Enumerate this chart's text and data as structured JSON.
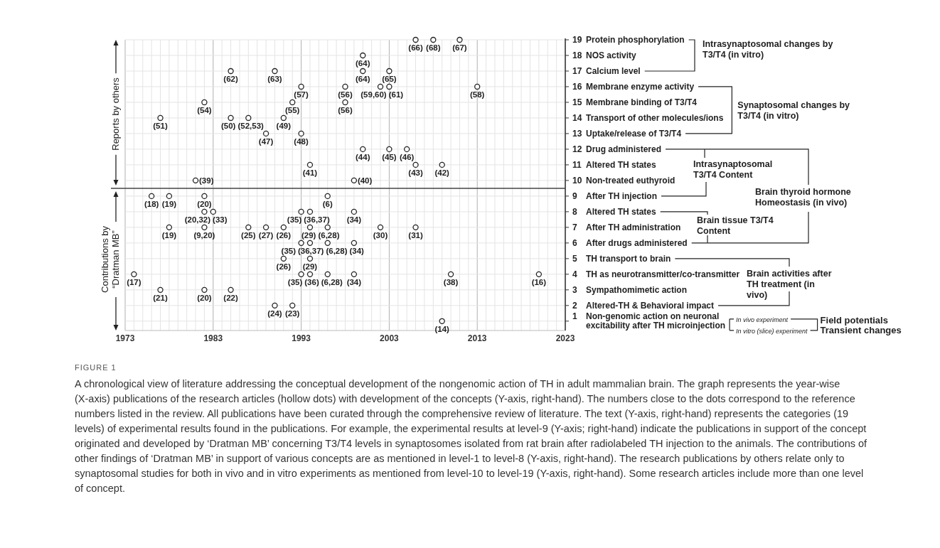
{
  "chart_data": {
    "type": "scatter",
    "x": [
      2006,
      2008,
      2011,
      2000,
      1985,
      1990,
      2000,
      2003,
      1993,
      1998,
      2002,
      2003,
      2013,
      1982,
      1992,
      1998,
      1977,
      1985,
      1987,
      1991,
      1989,
      1993,
      2000,
      2003,
      2005,
      1994,
      2006,
      2009,
      1981,
      1999,
      1976,
      1978,
      1982,
      1996,
      1982,
      1983,
      1993,
      1994,
      1999,
      1978,
      1982,
      1987,
      1989,
      1991,
      1994,
      1996,
      2002,
      2006,
      1993,
      1994,
      1996,
      1999,
      1991,
      1994,
      1974,
      1993,
      1994,
      1996,
      1999,
      2010,
      2020,
      1977,
      1982,
      1985,
      1990,
      1992,
      2009
    ],
    "values": [
      19,
      19,
      19,
      18,
      17,
      17,
      17,
      17,
      16,
      16,
      16,
      16,
      16,
      15,
      15,
      15,
      14,
      14,
      14,
      14,
      13,
      13,
      12,
      12,
      12,
      11,
      11,
      11,
      10,
      10,
      9,
      9,
      9,
      9,
      8,
      8,
      8,
      8,
      8,
      7,
      7,
      7,
      7,
      7,
      7,
      7,
      7,
      7,
      6,
      6,
      6,
      6,
      5,
      5,
      4,
      4,
      4,
      4,
      4,
      4,
      4,
      3,
      3,
      3,
      2,
      2,
      1
    ],
    "color": "#222222",
    "marker": "circle",
    "xlim": [
      1973,
      2023
    ],
    "xticks": [
      1973,
      {
        "value": 1974,
        "label": null
      },
      {
        "value": 1975,
        "label": null
      },
      {
        "value": 1976,
        "label": null
      },
      {
        "value": 1977,
        "label": null
      },
      {
        "value": 1978,
        "label": null
      },
      {
        "value": 1979,
        "label": null
      },
      {
        "value": 1980,
        "label": null
      },
      {
        "value": 1981,
        "label": null
      },
      {
        "value": 1982,
        "label": null
      },
      1983,
      {
        "value": 1984,
        "label": null
      },
      {
        "value": 1985,
        "label": null
      },
      {
        "value": 1986,
        "label": null
      },
      {
        "value": 1987,
        "label": null
      },
      {
        "value": 1988,
        "label": null
      },
      {
        "value": 1989,
        "label": null
      },
      {
        "value": 1990,
        "label": null
      },
      {
        "value": 1991,
        "label": null
      },
      {
        "value": 1992,
        "label": null
      },
      1993,
      {
        "value": 1994,
        "label": null
      },
      {
        "value": 1995,
        "label": null
      },
      {
        "value": 1996,
        "label": null
      },
      {
        "value": 1997,
        "label": null
      },
      {
        "value": 1998,
        "label": null
      },
      {
        "value": 1999,
        "label": null
      },
      {
        "value": 2000,
        "label": null
      },
      {
        "value": 2001,
        "label": null
      },
      {
        "value": 2002,
        "label": null
      },
      2003,
      {
        "value": 2004,
        "label": null
      },
      {
        "value": 2005,
        "label": null
      },
      {
        "value": 2006,
        "label": null
      },
      {
        "value": 2007,
        "label": null
      },
      {
        "value": 2008,
        "label": null
      },
      {
        "value": 2009,
        "label": null
      },
      {
        "value": 2010,
        "label": null
      },
      {
        "value": 2011,
        "label": null
      },
      {
        "value": 2012,
        "label": null
      },
      2013,
      {
        "value": 2014,
        "label": null
      },
      {
        "value": 2015,
        "label": null
      },
      {
        "value": 2016,
        "label": null
      },
      {
        "value": 2017,
        "label": null
      },
      {
        "value": 2018,
        "label": null
      },
      {
        "value": 2019,
        "label": null
      },
      {
        "value": 2020,
        "label": null
      },
      {
        "value": 2021,
        "label": null
      },
      {
        "value": 2022,
        "label": null
      },
      2023
    ],
    "ylim": [
      0.4,
      19
    ],
    "yticks": [
      {
        "value": 1,
        "label": "1 Non-genomic action on neuronal excitability after TH microinjection"
      },
      {
        "value": 2,
        "label": "2 Altered-TH & Behavioral impact"
      },
      {
        "value": 3,
        "label": "3 Sympathomimetic action"
      },
      {
        "value": 4,
        "label": "4 TH as neurotransmitter/co-transmitter"
      },
      {
        "value": 5,
        "label": "5 TH transport to brain"
      },
      {
        "value": 6,
        "label": "6 After drugs administered"
      },
      {
        "value": 7,
        "label": "7 After TH administration"
      },
      {
        "value": 8,
        "label": "8 Altered TH states"
      },
      {
        "value": 9,
        "label": "9 After TH injection"
      },
      {
        "value": 10,
        "label": "10 Non-treated euthyroid"
      },
      {
        "value": 11,
        "label": "11 Altered TH states"
      },
      {
        "value": 12,
        "label": "12 Drug administered"
      },
      {
        "value": 13,
        "label": "13 Uptake/release of T3/T4"
      },
      {
        "value": 14,
        "label": "14 Transport of other molecules/ions"
      },
      {
        "value": 15,
        "label": "15 Membrane binding of T3/T4"
      },
      {
        "value": 16,
        "label": "16 Membrane enzyme activity"
      },
      {
        "value": 17,
        "label": "17 Calcium level"
      },
      {
        "value": 18,
        "label": "18 NOS activity"
      },
      {
        "value": 19,
        "label": "19 Protein phosphorylation"
      }
    ],
    "grid": true,
    "ref_lines": [
      {
        "axis": "y",
        "value": 9.5,
        "color": "#444444"
      }
    ],
    "annotations": [
      "Intrasynaptosomal changes by T3/T4 (in vitro)",
      "Synaptosomal changes by T3/T4 (in vitro)",
      "Intrasynaptosomal T3/T4 Content",
      "Brain tissue T3/T4 Content",
      "Brain thyroid hormone Homeostasis (in vivo)",
      "Brain activities after TH treatment (in vivo)",
      "In vivo experiment",
      "In vitro (slice) experiment",
      "Field potentials",
      "Transient changes",
      "Reports by others",
      "Contributions by “Dratman MB”",
      "FIGURE 1",
      "A chronological view of literature addressing the conceptual development of the nongenomic action of TH in adult mammalian brain. The graph represents the year-wise (X-axis) publications of the research articles (hollow dots) with development of the concepts (Y-axis, right-hand). The numbers close to the dots correspond to the reference numbers listed in the review. All publications have been curated through the comprehensive review of literature. The text (Y-axis, right-hand) represents the categories (19 levels) of experimental results found in the publications. For example, the experimental results at level-9 (Y-axis; right-hand) indicate the publications in support of the concept originated and developed by ‘Dratman MB’ concerning T3/T4 levels in synaptosomes isolated from rat brain after radiolabeled TH injection to the animals. The contributions of other findings of ‘Dratman MB’ in support of various concepts are as mentioned in level-1 to level-8 (Y-axis, right-hand). The research publications by others relate only to synaptosomal studies for both in vivo and in vitro experiments as mentioned from level-10 to level-19 (Y-axis, right-hand). Some research articles include more than one level of concept.",
      {
        "text": "(66)",
        "x": 2006,
        "y": 19
      },
      {
        "text": "(68)",
        "x": 2008,
        "y": 19
      },
      {
        "text": "(67)",
        "x": 2011,
        "y": 19
      },
      {
        "text": "(64)",
        "x": 2000,
        "y": 18
      },
      {
        "text": "(62)",
        "x": 1985,
        "y": 17
      },
      {
        "text": "(63)",
        "x": 1990,
        "y": 17
      },
      {
        "text": "(64)",
        "x": 2000,
        "y": 17
      },
      {
        "text": "(65)",
        "x": 2003,
        "y": 17
      },
      {
        "text": "(57)",
        "x": 1993,
        "y": 16
      },
      {
        "text": "(56)",
        "x": 1998,
        "y": 16
      },
      {
        "text": "(59,60)",
        "x": 2002,
        "y": 16
      },
      {
        "text": "(61)",
        "x": 2003,
        "y": 16
      },
      {
        "text": "(58)",
        "x": 2013,
        "y": 16
      },
      {
        "text": "(54)",
        "x": 1982,
        "y": 15
      },
      {
        "text": "(55)",
        "x": 1992,
        "y": 15
      },
      {
        "text": "(56)",
        "x": 1998,
        "y": 15
      },
      {
        "text": "(51)",
        "x": 1977,
        "y": 14
      },
      {
        "text": "(50)",
        "x": 1985,
        "y": 14
      },
      {
        "text": "(52,53)",
        "x": 1987,
        "y": 14
      },
      {
        "text": "(49)",
        "x": 1991,
        "y": 14
      },
      {
        "text": "(47)",
        "x": 1989,
        "y": 13
      },
      {
        "text": "(48)",
        "x": 1993,
        "y": 13
      },
      {
        "text": "(44)",
        "x": 2000,
        "y": 12
      },
      {
        "text": "(45)",
        "x": 2003,
        "y": 12
      },
      {
        "text": "(46)",
        "x": 2005,
        "y": 12
      },
      {
        "text": "(41)",
        "x": 1994,
        "y": 11
      },
      {
        "text": "(43)",
        "x": 2006,
        "y": 11
      },
      {
        "text": "(42)",
        "x": 2009,
        "y": 11
      },
      {
        "text": "(39)",
        "x": 1981,
        "y": 10
      },
      {
        "text": "(40)",
        "x": 1999,
        "y": 10
      },
      {
        "text": "(18)",
        "x": 1976,
        "y": 9
      },
      {
        "text": "(19)",
        "x": 1978,
        "y": 9
      },
      {
        "text": "(20)",
        "x": 1982,
        "y": 9
      },
      {
        "text": "(6)",
        "x": 1996,
        "y": 9
      },
      {
        "text": "(20,32)",
        "x": 1982,
        "y": 8
      },
      {
        "text": "(33)",
        "x": 1983,
        "y": 8
      },
      {
        "text": "(35)",
        "x": 1993,
        "y": 8
      },
      {
        "text": "(36,37)",
        "x": 1994,
        "y": 8
      },
      {
        "text": "(34)",
        "x": 1999,
        "y": 8
      },
      {
        "text": "(19)",
        "x": 1978,
        "y": 7
      },
      {
        "text": "(9,20)",
        "x": 1982,
        "y": 7
      },
      {
        "text": "(25)",
        "x": 1987,
        "y": 7
      },
      {
        "text": "(27)",
        "x": 1989,
        "y": 7
      },
      {
        "text": "(26)",
        "x": 1991,
        "y": 7
      },
      {
        "text": "(29)",
        "x": 1994,
        "y": 7
      },
      {
        "text": "(6,28)",
        "x": 1996,
        "y": 7
      },
      {
        "text": "(30)",
        "x": 2002,
        "y": 7
      },
      {
        "text": "(31)",
        "x": 2006,
        "y": 7
      },
      {
        "text": "(35)",
        "x": 1993,
        "y": 6
      },
      {
        "text": "(36,37)",
        "x": 1994,
        "y": 6
      },
      {
        "text": "(6,28)",
        "x": 1996,
        "y": 6
      },
      {
        "text": "(34)",
        "x": 1999,
        "y": 6
      },
      {
        "text": "(26)",
        "x": 1991,
        "y": 5
      },
      {
        "text": "(29)",
        "x": 1994,
        "y": 5
      },
      {
        "text": "(17)",
        "x": 1974,
        "y": 4
      },
      {
        "text": "(35)",
        "x": 1993,
        "y": 4
      },
      {
        "text": "(36)",
        "x": 1994,
        "y": 4
      },
      {
        "text": "(6,28)",
        "x": 1996,
        "y": 4
      },
      {
        "text": "(34)",
        "x": 1999,
        "y": 4
      },
      {
        "text": "(38)",
        "x": 2010,
        "y": 4
      },
      {
        "text": "(16)",
        "x": 2020,
        "y": 4
      },
      {
        "text": "(21)",
        "x": 1977,
        "y": 3
      },
      {
        "text": "(20)",
        "x": 1982,
        "y": 3
      },
      {
        "text": "(22)",
        "x": 1985,
        "y": 3
      },
      {
        "text": "(24)",
        "x": 1990,
        "y": 2
      },
      {
        "text": "(23)",
        "x": 1992,
        "y": 2
      },
      {
        "text": "(14)",
        "x": 2009,
        "y": 1
      }
    ]
  }
}
